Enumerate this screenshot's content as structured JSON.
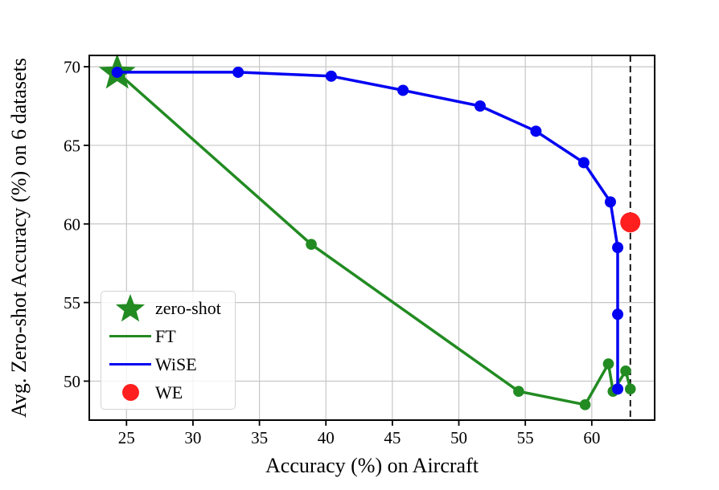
{
  "figure": {
    "background": "#ffffff"
  },
  "chart_data": {
    "type": "line",
    "title": "",
    "xlabel": "Accuracy (%) on Aircraft",
    "ylabel": "Avg. Zero-shot Accuracy (%) on 6 datasets",
    "xlim": [
      22.2,
      64.73
    ],
    "ylim": [
      47.52,
      70.72
    ],
    "xticks": [
      25,
      30,
      35,
      40,
      45,
      50,
      55,
      60
    ],
    "yticks": [
      50,
      55,
      60,
      65,
      70
    ],
    "grid": true,
    "grid_color": "#c6c6c6",
    "axis_color": "#000000",
    "dashed_vline_x": 62.9,
    "series": [
      {
        "name": "FT",
        "color": "#228B22",
        "marker": "circle",
        "points": [
          [
            24.3,
            69.65
          ],
          [
            38.9,
            58.7
          ],
          [
            54.5,
            49.35
          ],
          [
            59.5,
            48.5
          ],
          [
            61.25,
            51.1
          ],
          [
            61.6,
            49.35
          ],
          [
            62.55,
            50.65
          ],
          [
            62.9,
            49.5
          ]
        ]
      },
      {
        "name": "WiSE",
        "color": "#0202F2",
        "marker": "circle",
        "points": [
          [
            24.3,
            69.65
          ],
          [
            33.4,
            69.65
          ],
          [
            40.4,
            69.4
          ],
          [
            45.8,
            68.5
          ],
          [
            51.6,
            67.5
          ],
          [
            55.8,
            65.9
          ],
          [
            59.4,
            63.9
          ],
          [
            61.4,
            61.4
          ],
          [
            61.95,
            58.5
          ],
          [
            61.95,
            54.25
          ],
          [
            61.95,
            49.5
          ]
        ]
      }
    ],
    "annotations": [
      {
        "name": "zero-shot",
        "type": "star",
        "color": "#228B22",
        "point": [
          24.3,
          69.65
        ]
      },
      {
        "name": "WE",
        "type": "dot",
        "color": "#FF1F1F",
        "point": [
          62.9,
          60.1
        ]
      }
    ],
    "legend": {
      "position": "lower left",
      "items": [
        {
          "label": "zero-shot",
          "marker": "star",
          "color": "#228B22"
        },
        {
          "label": "FT",
          "marker": "line",
          "color": "#228B22"
        },
        {
          "label": "WiSE",
          "marker": "line",
          "color": "#0202F2"
        },
        {
          "label": "WE",
          "marker": "dot",
          "color": "#FF1F1F"
        }
      ]
    }
  }
}
